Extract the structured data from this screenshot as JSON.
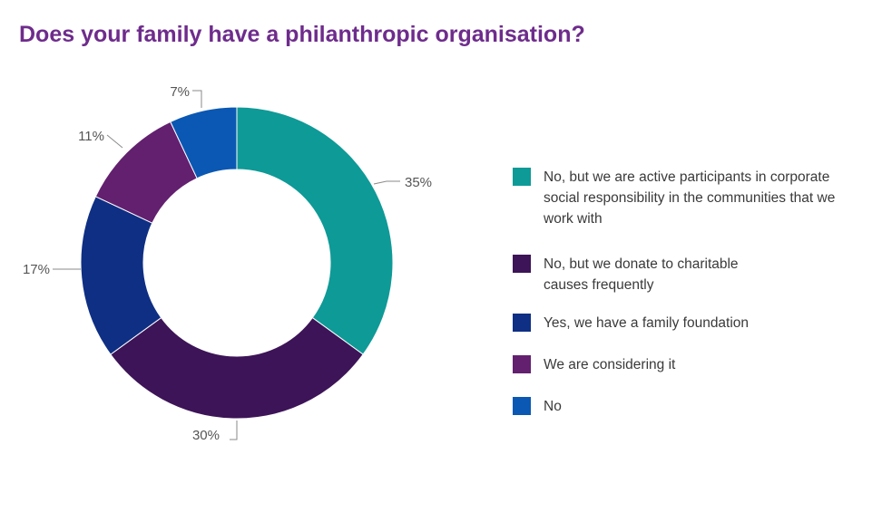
{
  "title": "Does your family have a philanthropic organisation?",
  "chart_data": {
    "type": "pie",
    "donut": true,
    "title": "Does your family have a philanthropic organisation?",
    "legend_position": "right",
    "series": [
      {
        "name": "No, but we are active participants in corporate social responsibility in the communities that we work with",
        "value": 35,
        "label": "35%",
        "color": "#0e9a97"
      },
      {
        "name": "No, but we donate to charitable causes frequently",
        "value": 30,
        "label": "30%",
        "color": "#3d1457"
      },
      {
        "name": "Yes, we have a family foundation",
        "value": 17,
        "label": "17%",
        "color": "#0e2f83"
      },
      {
        "name": "We are considering it",
        "value": 11,
        "label": "11%",
        "color": "#63206f"
      },
      {
        "name": "No",
        "value": 7,
        "label": "7%",
        "color": "#0a58b3"
      }
    ]
  }
}
